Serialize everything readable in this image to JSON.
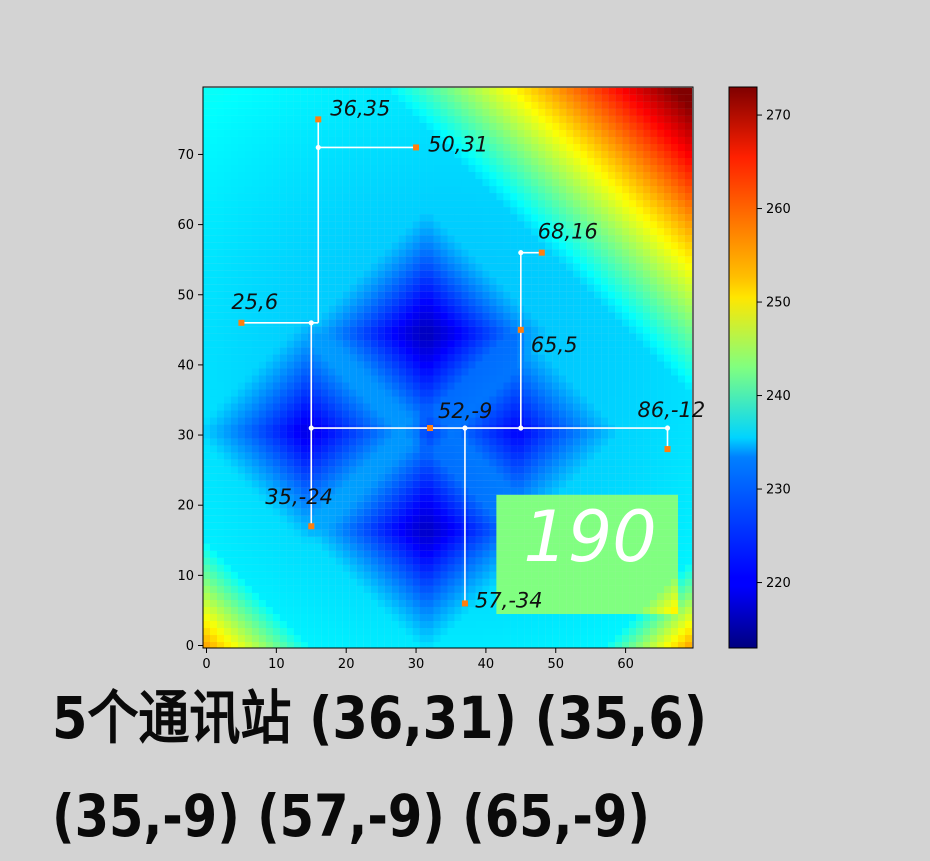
{
  "chart_data": {
    "type": "heatmap",
    "title": "",
    "xlabel": "",
    "ylabel": "",
    "xlim": [
      0,
      70
    ],
    "ylim": [
      0,
      80
    ],
    "xticks": [
      0,
      10,
      20,
      30,
      40,
      50,
      60
    ],
    "yticks": [
      0,
      10,
      20,
      30,
      40,
      50,
      60,
      70
    ],
    "colormap": "jet",
    "colorbar": {
      "range": [
        213,
        273
      ],
      "ticks": [
        220,
        230,
        240,
        250,
        260,
        270
      ]
    },
    "tree_nodes": [
      [
        16,
        71
      ],
      [
        15,
        46
      ],
      [
        15,
        31
      ],
      [
        37,
        31
      ],
      [
        45,
        31
      ],
      [
        45,
        56
      ],
      [
        66,
        31
      ]
    ],
    "tree_edges": [
      [
        [
          16,
          75
        ],
        [
          16,
          71
        ]
      ],
      [
        [
          16,
          71
        ],
        [
          30,
          71
        ]
      ],
      [
        [
          16,
          71
        ],
        [
          16,
          46
        ]
      ],
      [
        [
          5,
          46
        ],
        [
          16,
          46
        ]
      ],
      [
        [
          15,
          46
        ],
        [
          15,
          31
        ]
      ],
      [
        [
          15,
          31
        ],
        [
          15,
          17
        ]
      ],
      [
        [
          15,
          31
        ],
        [
          66,
          31
        ]
      ],
      [
        [
          37,
          31
        ],
        [
          37,
          6
        ]
      ],
      [
        [
          45,
          31
        ],
        [
          45,
          56
        ]
      ],
      [
        [
          45,
          56
        ],
        [
          48,
          56
        ]
      ],
      [
        [
          66,
          31
        ],
        [
          66,
          28
        ]
      ]
    ],
    "points": [
      {
        "x": 16,
        "y": 75,
        "label": "36,35"
      },
      {
        "x": 30,
        "y": 71,
        "label": "50,31"
      },
      {
        "x": 48,
        "y": 56,
        "label": "68,16"
      },
      {
        "x": 5,
        "y": 46,
        "label": "25,6"
      },
      {
        "x": 45,
        "y": 45,
        "label": "65,5"
      },
      {
        "x": 32,
        "y": 31,
        "label": "52,-9"
      },
      {
        "x": 66,
        "y": 28,
        "label": "86,-12"
      },
      {
        "x": 15,
        "y": 17,
        "label": "35,-24"
      },
      {
        "x": 37,
        "y": 6,
        "label": "57,-34"
      }
    ],
    "annotation": "190"
  },
  "handwriting": {
    "line1": "5个通讯站 (36,31) (35,6)",
    "line2": "(35,-9) (57,-9) (65,-9)"
  },
  "colors": {
    "marker": "#ff7f0e",
    "tree": "#ffffff",
    "background": "#d3d3d3"
  }
}
